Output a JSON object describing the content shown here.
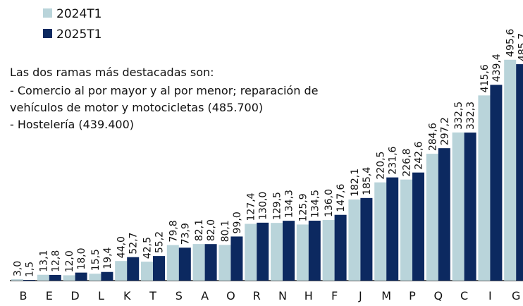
{
  "chart_data": {
    "type": "bar",
    "categories": [
      "B",
      "E",
      "D",
      "L",
      "K",
      "T",
      "S",
      "A",
      "O",
      "R",
      "N",
      "H",
      "F",
      "J",
      "M",
      "P",
      "Q",
      "C",
      "I",
      "G"
    ],
    "series": [
      {
        "name": "2024T1",
        "color": "#b9d4da",
        "label_color": "#7fb0bb",
        "values": [
          3.0,
          13.1,
          12.0,
          15.5,
          44.0,
          42.5,
          79.8,
          82.1,
          80.1,
          127.4,
          129.5,
          125.9,
          136.0,
          182.1,
          220.5,
          226.8,
          284.6,
          332.5,
          415.6,
          495.6
        ],
        "value_labels": [
          "3,0",
          "13,1",
          "12,0",
          "15,5",
          "44,0",
          "42,5",
          "79,8",
          "82,1",
          "80,1",
          "127,4",
          "129,5",
          "125,9",
          "136,0",
          "182,1",
          "220,5",
          "226,8",
          "284,6",
          "332,5",
          "415,6",
          "495,6"
        ]
      },
      {
        "name": "2025T1",
        "color": "#0c2960",
        "label_color": "#0c2960",
        "values": [
          1.5,
          12.8,
          18.0,
          19.4,
          52.7,
          55.2,
          73.9,
          82.0,
          99.0,
          130.0,
          134.3,
          134.5,
          147.6,
          185.4,
          231.6,
          242.6,
          297.2,
          332.3,
          439.4,
          485.7
        ],
        "value_labels": [
          "1,5",
          "12,8",
          "18,0",
          "19,4",
          "52,7",
          "55,2",
          "73,9",
          "82,0",
          "99,0",
          "130,0",
          "134,3",
          "134,5",
          "147,6",
          "185,4",
          "231,6",
          "242,6",
          "297,2",
          "332,3",
          "439,4",
          "485,7"
        ]
      }
    ],
    "annotations": [
      "Las dos ramas más destacadas son:",
      "- Comercio al por mayor y al por menor; reparación de",
      "vehículos de motor y motocicletas (485.700)",
      "- Hostelería (439.400)"
    ]
  }
}
